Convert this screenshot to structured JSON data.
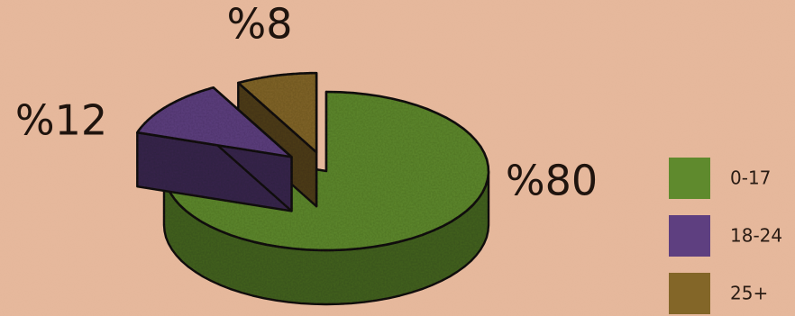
{
  "chart_data": {
    "type": "pie",
    "style": "3d-exploded",
    "title": "",
    "categories": [
      "0-17",
      "18-24",
      "25+"
    ],
    "values": [
      80,
      12,
      8
    ],
    "value_labels": [
      "%80",
      "%12",
      "%8"
    ],
    "colors": [
      "#5f8a2d",
      "#5e3f80",
      "#836628"
    ],
    "legend": {
      "position": "right",
      "items": [
        {
          "label": "0-17",
          "color": "#5f8a2d"
        },
        {
          "label": "18-24",
          "color": "#5e3f80"
        },
        {
          "label": "25+",
          "color": "#836628"
        }
      ]
    }
  }
}
